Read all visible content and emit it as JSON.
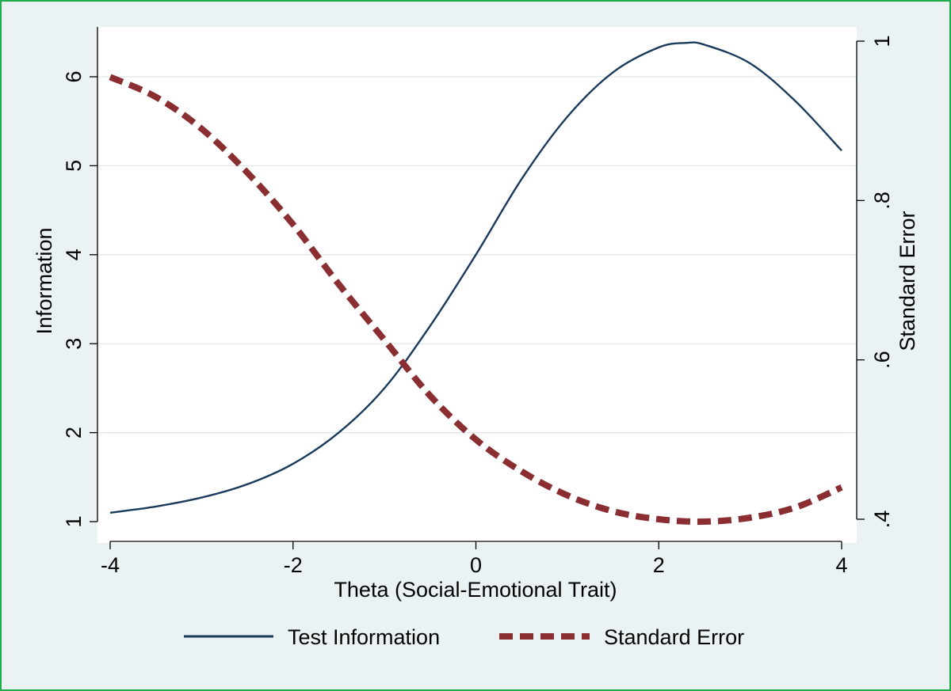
{
  "chart_data": {
    "type": "line",
    "xlabel": "Theta (Social-Emotional Trait)",
    "ylabel": "Information",
    "y2label": "Standard Error",
    "xlim": [
      -4,
      4
    ],
    "ylim": [
      1,
      6.4
    ],
    "y2lim": [
      0.4,
      1.0
    ],
    "x_ticks": [
      -4,
      -2,
      0,
      2,
      4
    ],
    "x_tick_labels": [
      "-4",
      "-2",
      "0",
      "2",
      "4"
    ],
    "y_ticks": [
      1,
      2,
      3,
      4,
      5,
      6
    ],
    "y_tick_labels": [
      "1",
      "2",
      "3",
      "4",
      "5",
      "6"
    ],
    "y2_ticks": [
      0.4,
      0.6,
      0.8,
      1.0
    ],
    "y2_tick_labels": [
      ".4",
      ".6",
      ".8",
      "1"
    ],
    "grid": true,
    "legend_position": "bottom",
    "series": [
      {
        "name": "Test Information",
        "axis": "left",
        "color": "#1a3a5c",
        "style": "solid",
        "x": [
          -4,
          -3.5,
          -3,
          -2.5,
          -2,
          -1.5,
          -1,
          -0.5,
          0,
          0.5,
          1,
          1.5,
          2,
          2.3,
          2.5,
          3,
          3.5,
          4
        ],
        "y": [
          1.1,
          1.17,
          1.27,
          1.42,
          1.65,
          2.0,
          2.5,
          3.2,
          4.0,
          4.85,
          5.55,
          6.05,
          6.33,
          6.38,
          6.36,
          6.15,
          5.72,
          5.17
        ]
      },
      {
        "name": "Standard Error",
        "axis": "right",
        "color": "#8b2e32",
        "style": "dashed",
        "x": [
          -4,
          -3.5,
          -3,
          -2.5,
          -2,
          -1.5,
          -1,
          -0.5,
          0,
          0.5,
          1,
          1.5,
          2,
          2.5,
          3,
          3.5,
          4
        ],
        "y": [
          0.955,
          0.93,
          0.89,
          0.835,
          0.77,
          0.695,
          0.625,
          0.555,
          0.5,
          0.46,
          0.43,
          0.41,
          0.4,
          0.397,
          0.402,
          0.415,
          0.44
        ]
      }
    ]
  }
}
